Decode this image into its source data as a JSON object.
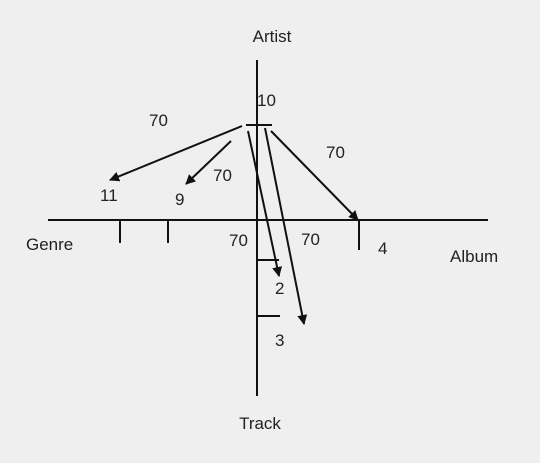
{
  "axes": {
    "artist": "Artist",
    "genre": "Genre",
    "album": "Album",
    "track": "Track"
  },
  "values": {
    "artist": "10",
    "genre_far": "11",
    "genre_near": "9",
    "album": "4",
    "track_near": "2",
    "track_far": "3"
  },
  "edge_labels": {
    "to_genre_far": "70",
    "to_genre_near": "70",
    "to_album": "70",
    "to_track_near": "70",
    "to_track_far": "70"
  },
  "colors": {
    "background": "#efefef",
    "ink": "#111111"
  }
}
